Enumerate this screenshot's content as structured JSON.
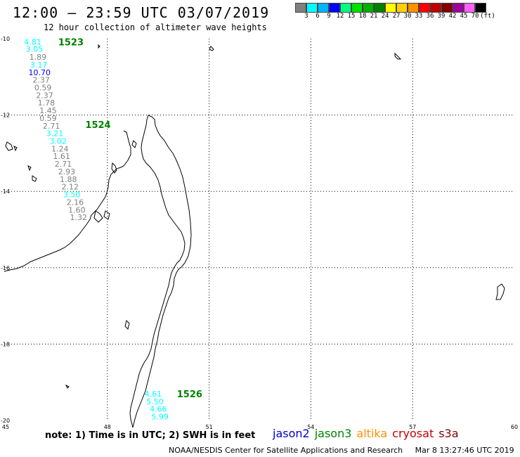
{
  "header": {
    "title": "12:00 – 23:59 UTC 03/07/2019",
    "subtitle": "12 hour collection of altimeter wave heights"
  },
  "legend": {
    "unit": "(ft)",
    "bins": [
      {
        "label": "",
        "color": "#808080"
      },
      {
        "label": "3",
        "color": "#00ffff"
      },
      {
        "label": "6",
        "color": "#00b4ff"
      },
      {
        "label": "9",
        "color": "#0000ff"
      },
      {
        "label": "12",
        "color": "#00ff80"
      },
      {
        "label": "15",
        "color": "#00e000"
      },
      {
        "label": "18",
        "color": "#00b000"
      },
      {
        "label": "21",
        "color": "#008000"
      },
      {
        "label": "24",
        "color": "#ffff00"
      },
      {
        "label": "27",
        "color": "#ffd000"
      },
      {
        "label": "30",
        "color": "#ff9000"
      },
      {
        "label": "33",
        "color": "#ff0000"
      },
      {
        "label": "36",
        "color": "#c00000"
      },
      {
        "label": "39",
        "color": "#800000"
      },
      {
        "label": "42",
        "color": "#a000a0"
      },
      {
        "label": "45",
        "color": "#ff60ff"
      },
      {
        "label": "70",
        "color": "#000000"
      }
    ]
  },
  "map": {
    "lon_range": [
      45,
      60
    ],
    "lat_range": [
      -20,
      -10
    ],
    "lon_ticks": [
      45,
      48,
      51,
      54,
      57,
      60
    ],
    "lat_ticks": [
      -10,
      -12,
      -14,
      -16,
      -18,
      -20
    ],
    "lon_tick_labels": [
      "45",
      "48",
      "51",
      "54",
      "57",
      "60"
    ],
    "lat_tick_labels": [
      "-10",
      "-12",
      "-14",
      "-16",
      "-18",
      "-20"
    ],
    "gridlines": true,
    "passes": [
      {
        "label": "1523",
        "lon": 46.55,
        "lat": -10.08
      },
      {
        "label": "1524",
        "lon": 47.35,
        "lat": -12.25
      },
      {
        "label": "1526",
        "lon": 50.05,
        "lat": -19.3
      }
    ],
    "observations": [
      {
        "value": "4.81",
        "lon": 45.8,
        "lat": -10.08,
        "color": "#00ffff"
      },
      {
        "value": "3.05",
        "lon": 45.85,
        "lat": -10.27,
        "color": "#00ffff"
      },
      {
        "value": "1.89",
        "lon": 45.95,
        "lat": -10.48,
        "color": "#808080"
      },
      {
        "value": "3.17",
        "lon": 45.98,
        "lat": -10.68,
        "color": "#00ffff"
      },
      {
        "value": "10.70",
        "lon": 46.0,
        "lat": -10.88,
        "color": "#0000ff"
      },
      {
        "value": "2.37",
        "lon": 46.05,
        "lat": -11.08,
        "color": "#808080"
      },
      {
        "value": "0.59",
        "lon": 46.1,
        "lat": -11.28,
        "color": "#808080"
      },
      {
        "value": "2.37",
        "lon": 46.15,
        "lat": -11.48,
        "color": "#808080"
      },
      {
        "value": "1.78",
        "lon": 46.2,
        "lat": -11.68,
        "color": "#808080"
      },
      {
        "value": "1.45",
        "lon": 46.25,
        "lat": -11.88,
        "color": "#808080"
      },
      {
        "value": "0.59",
        "lon": 46.25,
        "lat": -12.08,
        "color": "#808080"
      },
      {
        "value": "2.71",
        "lon": 46.35,
        "lat": -12.28,
        "color": "#808080"
      },
      {
        "value": "3.21",
        "lon": 46.45,
        "lat": -12.48,
        "color": "#00ffff"
      },
      {
        "value": "3.02",
        "lon": 46.55,
        "lat": -12.68,
        "color": "#00ffff"
      },
      {
        "value": "1.24",
        "lon": 46.6,
        "lat": -12.88,
        "color": "#808080"
      },
      {
        "value": "1.61",
        "lon": 46.65,
        "lat": -13.08,
        "color": "#808080"
      },
      {
        "value": "2.71",
        "lon": 46.7,
        "lat": -13.28,
        "color": "#808080"
      },
      {
        "value": "2.93",
        "lon": 46.8,
        "lat": -13.48,
        "color": "#808080"
      },
      {
        "value": "1.88",
        "lon": 46.85,
        "lat": -13.68,
        "color": "#808080"
      },
      {
        "value": "2.12",
        "lon": 46.9,
        "lat": -13.88,
        "color": "#808080"
      },
      {
        "value": "3.50",
        "lon": 46.95,
        "lat": -14.08,
        "color": "#00ffff"
      },
      {
        "value": "2.16",
        "lon": 47.05,
        "lat": -14.28,
        "color": "#808080"
      },
      {
        "value": "1.60",
        "lon": 47.1,
        "lat": -14.48,
        "color": "#808080"
      },
      {
        "value": "1.32",
        "lon": 47.15,
        "lat": -14.68,
        "color": "#808080"
      },
      {
        "value": "4.61",
        "lon": 49.35,
        "lat": -19.3,
        "color": "#00ffff"
      },
      {
        "value": "5.50",
        "lon": 49.4,
        "lat": -19.5,
        "color": "#00ffff"
      },
      {
        "value": "4.66",
        "lon": 49.5,
        "lat": -19.7,
        "color": "#00ffff"
      },
      {
        "value": "5.99",
        "lon": 49.55,
        "lat": -19.9,
        "color": "#00ffff"
      }
    ]
  },
  "footer": {
    "note": "note: 1) Time is in UTC; 2) SWH is in feet",
    "satellites": [
      {
        "name": "jason2",
        "color": "#0000c8"
      },
      {
        "name": "jason3",
        "color": "#008000"
      },
      {
        "name": "altika",
        "color": "#ff9000"
      },
      {
        "name": "cryosat",
        "color": "#c00000"
      },
      {
        "name": "s3a",
        "color": "#800000"
      }
    ],
    "credit": "NOAA/NESDIS Center for Satellite Applications and Research",
    "timestamp": "Mar  8 13:27:46 UTC 2019"
  }
}
